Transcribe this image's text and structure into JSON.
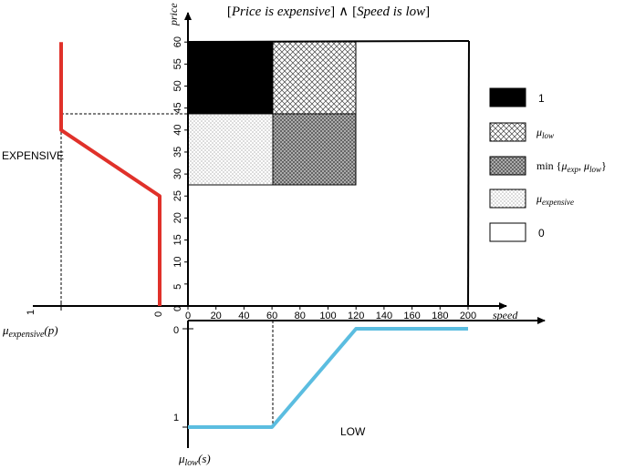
{
  "title": {
    "open1": "[",
    "left_term": "Price is expensive",
    "close1": "]",
    "and_symbol": "∧",
    "open2": "[",
    "right_term": "Speed is low",
    "close2": "]"
  },
  "axes": {
    "price_label": "price",
    "speed_label": "speed",
    "price_ticks": [
      "0",
      "5",
      "10",
      "15",
      "20",
      "25",
      "30",
      "35",
      "40",
      "45",
      "50",
      "55",
      "60"
    ],
    "speed_ticks": [
      "0",
      "20",
      "40",
      "60",
      "80",
      "100",
      "120",
      "140",
      "160",
      "180",
      "200"
    ]
  },
  "left_panel": {
    "label": "EXPENSIVE",
    "tick_one": "1",
    "tick_zero": "0",
    "func_mu": "μ",
    "func_sub": "expensive",
    "func_arg": "(p)",
    "curve_color": "#e0312a",
    "curve_points": [
      [
        0,
        0
      ],
      [
        0,
        25
      ],
      [
        1,
        40
      ],
      [
        1,
        60
      ]
    ]
  },
  "bottom_panel": {
    "label": "LOW",
    "tick_zero": "0",
    "tick_one": "1",
    "func_mu": "μ",
    "func_sub": "low",
    "func_arg": "(s)",
    "curve_color": "#5bbde0",
    "curve_points": [
      [
        0,
        1
      ],
      [
        60,
        1
      ],
      [
        120,
        0
      ],
      [
        200,
        0
      ]
    ]
  },
  "legend": {
    "items": [
      {
        "id": "black",
        "label": "1"
      },
      {
        "id": "cross",
        "mu": "μ",
        "sub": "low"
      },
      {
        "id": "dense",
        "prefix": "min {",
        "mu1": "μ",
        "sub1": "exp",
        "sep": ", ",
        "mu2": "μ",
        "sub2": "low",
        "suffix": "}"
      },
      {
        "id": "dots",
        "mu": "μ",
        "sub": "expensive"
      },
      {
        "id": "white",
        "label": "0"
      }
    ]
  },
  "colors": {
    "axis": "#000000",
    "black_region": "#000000",
    "expensive_curve": "#e0312a",
    "low_curve": "#5bbde0"
  }
}
